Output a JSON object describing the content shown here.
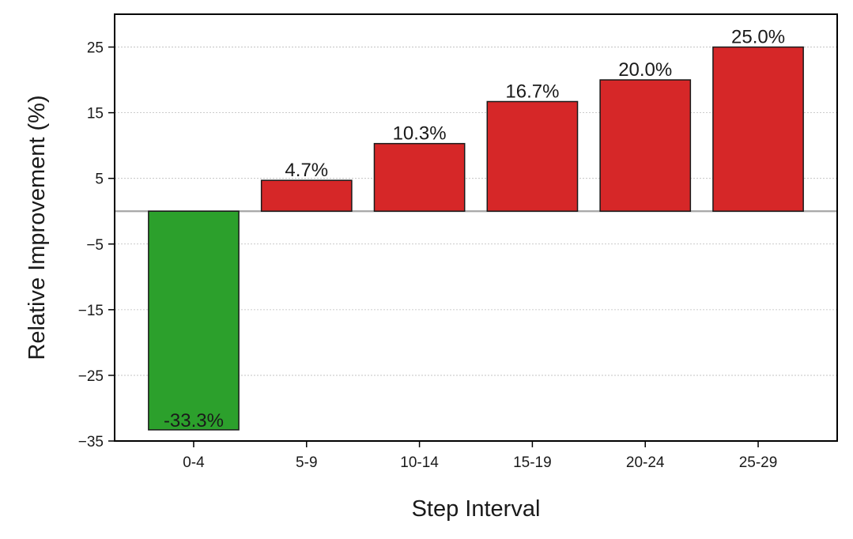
{
  "chart_data": {
    "type": "bar",
    "title": "",
    "xlabel": "Step Interval",
    "ylabel": "Relative Improvement (%)",
    "categories": [
      "0-4",
      "5-9",
      "10-14",
      "15-19",
      "20-24",
      "25-29"
    ],
    "values": [
      -33.3,
      4.7,
      10.3,
      16.7,
      20.0,
      25.0
    ],
    "data_labels": [
      "-33.3%",
      "4.7%",
      "10.3%",
      "16.7%",
      "20.0%",
      "25.0%"
    ],
    "yticks": [
      25,
      15,
      5,
      -5,
      -15,
      -25,
      -35
    ],
    "ytick_labels": [
      "25",
      "15",
      "5",
      "−5",
      "−15",
      "−25",
      "−35"
    ],
    "ylim": [
      -35,
      30
    ],
    "grid": true,
    "zero_line": true,
    "colors": {
      "negative": "#2ca02c",
      "positive": "#d62728",
      "edge": "#1a1a1a",
      "zero_line": "#a6a6a6",
      "grid": "#bbbbbb"
    }
  }
}
